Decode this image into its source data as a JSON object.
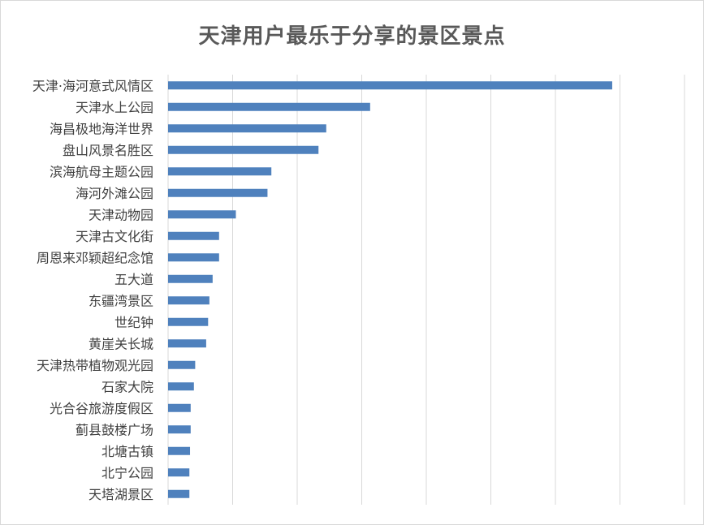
{
  "chart_data": {
    "type": "bar",
    "orientation": "horizontal",
    "title": "天津用户最乐于分享的景区景点",
    "xlabel": "",
    "ylabel": "",
    "xlim": [
      0,
      8
    ],
    "grid": "vertical",
    "tick_labels_shown": false,
    "bar_color": "#4f81bd",
    "categories": [
      "天津·海河意式风情区",
      "天津水上公园",
      "海昌极地海洋世界",
      "盘山风景名胜区",
      "滨海航母主题公园",
      "海河外滩公园",
      "天津动物园",
      "天津古文化街",
      "周恩来邓颖超纪念馆",
      "五大道",
      "东疆湾景区",
      "世纪钟",
      "黄崖关长城",
      "天津热带植物观光园",
      "石家大院",
      "光合谷旅游度假区",
      "蓟县鼓楼广场",
      "北塘古镇",
      "北宁公园",
      "天塔湖景区"
    ],
    "values": [
      6.88,
      3.13,
      2.45,
      2.33,
      1.6,
      1.54,
      1.05,
      0.79,
      0.79,
      0.69,
      0.64,
      0.62,
      0.59,
      0.42,
      0.4,
      0.35,
      0.35,
      0.34,
      0.33,
      0.33
    ]
  }
}
